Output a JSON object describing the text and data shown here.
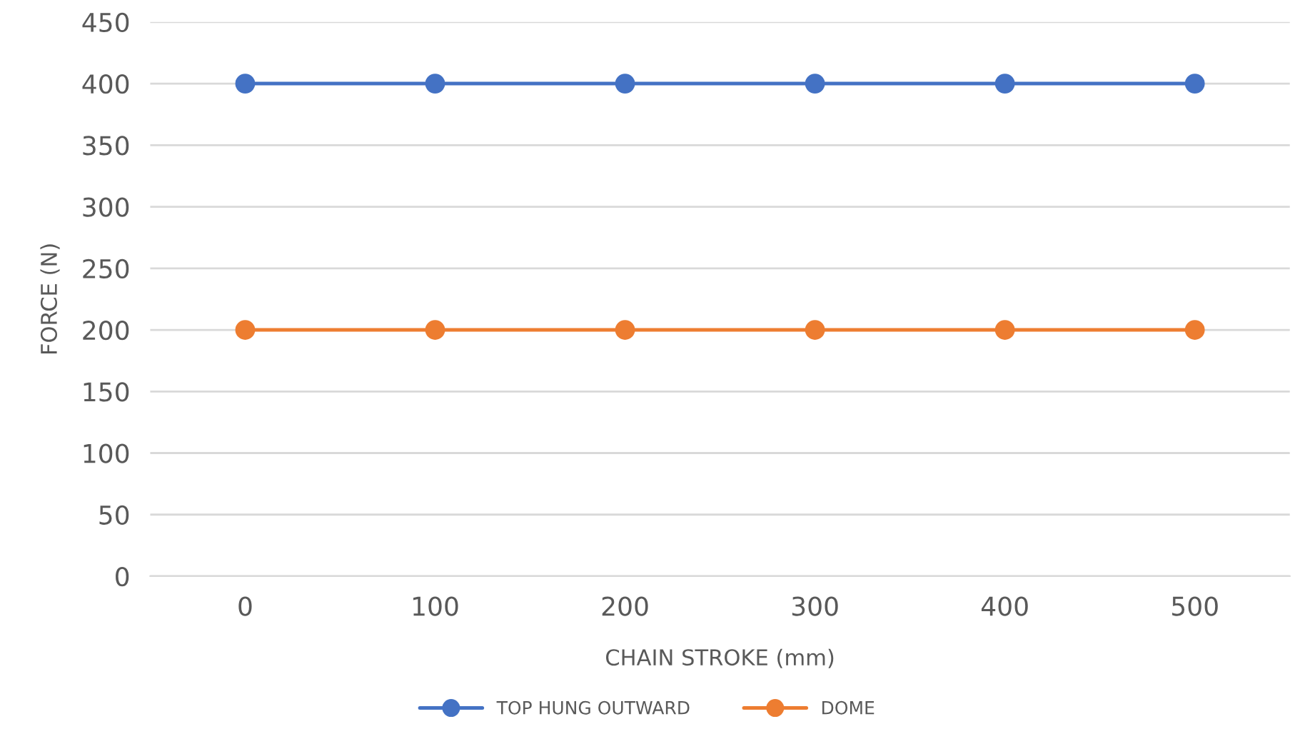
{
  "chart_data": {
    "type": "line",
    "xlabel": "CHAIN STROKE (mm)",
    "ylabel": "FORCE (N)",
    "categories": [
      "0",
      "100",
      "200",
      "300",
      "400",
      "500"
    ],
    "series": [
      {
        "name": "TOP HUNG OUTWARD",
        "color": "#4472c4",
        "values": [
          400,
          400,
          400,
          400,
          400,
          400
        ]
      },
      {
        "name": "DOME",
        "color": "#ed7d31",
        "values": [
          200,
          200,
          200,
          200,
          200,
          200
        ]
      }
    ],
    "ylim": [
      0,
      450
    ],
    "yticks": [
      0,
      50,
      100,
      150,
      200,
      250,
      300,
      350,
      400,
      450
    ],
    "grid": "y",
    "legend": "bottom",
    "marker": "circle",
    "line_style": "solid"
  }
}
